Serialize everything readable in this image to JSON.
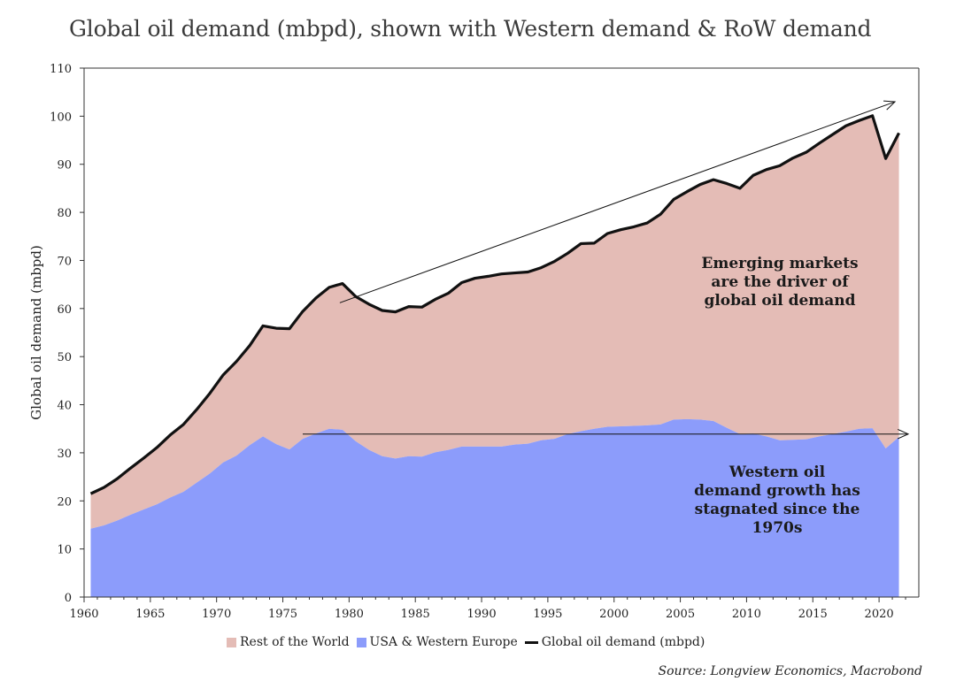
{
  "title": "Global oil demand (mbpd), shown with Western demand & RoW demand",
  "source": "Source: Longview Economics, Macrobond",
  "colors": {
    "row": "#e4bcb6",
    "west": "#8c9cfb",
    "global": "#111111"
  },
  "annotations": [
    {
      "id": "emerging",
      "lines": [
        "Emerging markets",
        "are the driver of",
        "global oil demand"
      ]
    },
    {
      "id": "western",
      "lines": [
        "Western oil",
        "demand growth has",
        "stagnated since the",
        "1970s"
      ]
    }
  ],
  "chart_data": {
    "type": "area",
    "title": "Global oil demand (mbpd), shown with Western demand & RoW demand",
    "xlabel": "",
    "ylabel": "Global oil demand (mbpd)",
    "xlim": [
      1960,
      2023
    ],
    "ylim": [
      0,
      110
    ],
    "x_ticks": [
      1960,
      1965,
      1970,
      1975,
      1980,
      1985,
      1990,
      1995,
      2000,
      2005,
      2010,
      2015,
      2020
    ],
    "y_ticks": [
      0,
      10,
      20,
      30,
      40,
      50,
      60,
      70,
      80,
      90,
      100,
      110
    ],
    "legend": {
      "position": "bottom",
      "entries": [
        "Rest of the World",
        "USA & Western Europe",
        "Global oil demand (mbpd)"
      ]
    },
    "x": [
      1960.5,
      1961.5,
      1962.5,
      1963.5,
      1964.5,
      1965.5,
      1966.5,
      1967.5,
      1968.5,
      1969.5,
      1970.5,
      1971.5,
      1972.5,
      1973.5,
      1974.5,
      1975.5,
      1976.5,
      1977.5,
      1978.5,
      1979.5,
      1980.5,
      1981.5,
      1982.5,
      1983.5,
      1984.5,
      1985.5,
      1986.5,
      1987.5,
      1988.5,
      1989.5,
      1990.5,
      1991.5,
      1992.5,
      1993.5,
      1994.5,
      1995.5,
      1996.5,
      1997.5,
      1998.5,
      1999.5,
      2000.5,
      2001.5,
      2002.5,
      2003.5,
      2004.5,
      2005.5,
      2006.5,
      2007.5,
      2008.5,
      2009.5,
      2010.5,
      2011.5,
      2012.5,
      2013.5,
      2014.5,
      2015.5,
      2016.5,
      2017.5,
      2018.5,
      2019.5,
      2020.5,
      2021.5
    ],
    "series": [
      {
        "name": "USA & Western Europe",
        "stack": true,
        "values": [
          14.2,
          14.9,
          15.9,
          17.1,
          18.2,
          19.3,
          20.7,
          21.9,
          23.8,
          25.7,
          28.0,
          29.4,
          31.6,
          33.4,
          31.8,
          30.7,
          32.9,
          34.0,
          35.0,
          34.8,
          32.4,
          30.6,
          29.3,
          28.8,
          29.3,
          29.2,
          30.1,
          30.6,
          31.3,
          31.3,
          31.3,
          31.3,
          31.7,
          31.9,
          32.6,
          32.9,
          33.9,
          34.5,
          35.0,
          35.4,
          35.5,
          35.6,
          35.7,
          35.9,
          36.9,
          37.0,
          36.9,
          36.6,
          35.2,
          33.9,
          34.0,
          33.4,
          32.6,
          32.7,
          32.8,
          33.4,
          33.9,
          34.4,
          35.0,
          35.1,
          30.9,
          33.3
        ]
      },
      {
        "name": "Rest of the World",
        "stack": true,
        "values": [
          7.3,
          7.9,
          8.7,
          9.7,
          10.7,
          11.8,
          13.0,
          14.0,
          15.2,
          16.7,
          18.2,
          19.6,
          20.7,
          23.0,
          24.1,
          25.1,
          26.5,
          28.2,
          29.4,
          30.4,
          30.1,
          30.3,
          30.3,
          30.5,
          31.1,
          31.1,
          31.8,
          32.6,
          34.1,
          35.0,
          35.4,
          35.9,
          35.7,
          35.7,
          35.9,
          36.9,
          37.6,
          39.0,
          38.6,
          40.2,
          40.9,
          41.4,
          42.1,
          43.7,
          45.8,
          47.3,
          48.9,
          50.2,
          50.8,
          51.1,
          53.7,
          55.5,
          57.1,
          58.6,
          59.7,
          61.0,
          62.3,
          63.6,
          64.1,
          65.0,
          60.3,
          63.2
        ]
      },
      {
        "name": "Global oil demand (mbpd)",
        "type": "line",
        "values": [
          21.5,
          22.8,
          24.6,
          26.8,
          28.9,
          31.1,
          33.7,
          35.9,
          39.0,
          42.4,
          46.2,
          49.0,
          52.3,
          56.4,
          55.9,
          55.8,
          59.4,
          62.2,
          64.4,
          65.2,
          62.5,
          60.9,
          59.6,
          59.3,
          60.4,
          60.3,
          61.9,
          63.2,
          65.4,
          66.3,
          66.7,
          67.2,
          67.4,
          67.6,
          68.5,
          69.8,
          71.5,
          73.5,
          73.6,
          75.6,
          76.4,
          77.0,
          77.8,
          79.6,
          82.7,
          84.3,
          85.8,
          86.8,
          86.0,
          85.0,
          87.7,
          88.9,
          89.7,
          91.3,
          92.5,
          94.4,
          96.2,
          98.0,
          99.1,
          100.1,
          91.2,
          96.5
        ]
      }
    ]
  }
}
